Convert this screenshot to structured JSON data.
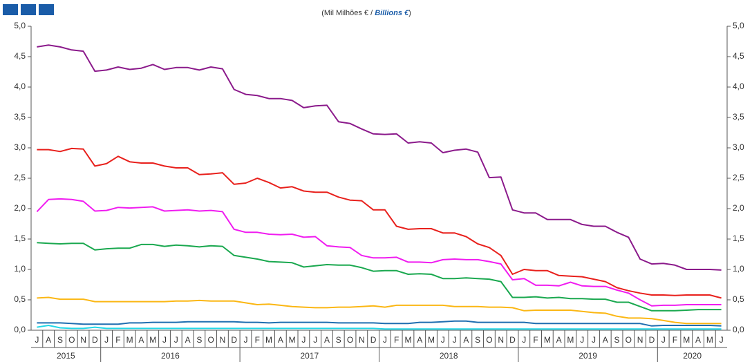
{
  "chart_data": {
    "type": "line",
    "subtitle": [
      "(Mil Milhões € / ",
      "Billions  €",
      ")"
    ],
    "categories": [
      "J",
      "A",
      "S",
      "O",
      "N",
      "D",
      "J",
      "F",
      "M",
      "A",
      "M",
      "J",
      "J",
      "A",
      "S",
      "O",
      "N",
      "D",
      "J",
      "F",
      "M",
      "A",
      "M",
      "J",
      "J",
      "A",
      "S",
      "O",
      "N",
      "D",
      "J",
      "F",
      "M",
      "A",
      "M",
      "J",
      "J",
      "A",
      "S",
      "O",
      "N",
      "D",
      "J",
      "F",
      "M",
      "A",
      "M",
      "J",
      "J",
      "A",
      "S",
      "O",
      "N",
      "D",
      "J",
      "F",
      "M",
      "A",
      "M",
      "J"
    ],
    "years": [
      "2015",
      "2016",
      "2017",
      "2018",
      "2019",
      "2020"
    ],
    "ylim": [
      0,
      5
    ],
    "yticks": [
      {
        "value": 0,
        "label": "0,0"
      },
      {
        "value": 0.5,
        "label": "0,5"
      },
      {
        "value": 1,
        "label": "1,0"
      },
      {
        "value": 1.5,
        "label": "1,5"
      },
      {
        "value": 2,
        "label": "2,0"
      },
      {
        "value": 2.5,
        "label": "2,5"
      },
      {
        "value": 3,
        "label": "3,0"
      },
      {
        "value": 3.5,
        "label": "3,5"
      },
      {
        "value": 4,
        "label": "4,0"
      },
      {
        "value": 4.5,
        "label": "4,5"
      },
      {
        "value": 5,
        "label": "5,0"
      }
    ],
    "series": [
      {
        "color": "#8b1a8b",
        "values": [
          4.66,
          4.69,
          4.66,
          4.61,
          4.59,
          4.26,
          4.28,
          4.33,
          4.29,
          4.31,
          4.37,
          4.29,
          4.32,
          4.32,
          4.28,
          4.33,
          4.3,
          3.96,
          3.88,
          3.86,
          3.81,
          3.81,
          3.78,
          3.66,
          3.69,
          3.7,
          3.43,
          3.4,
          3.31,
          3.23,
          3.22,
          3.23,
          3.08,
          3.1,
          3.08,
          2.92,
          2.96,
          2.98,
          2.93,
          2.51,
          2.52,
          1.98,
          1.93,
          1.93,
          1.82,
          1.82,
          1.82,
          1.74,
          1.71,
          1.71,
          1.61,
          1.53,
          1.17,
          1.09,
          1.1,
          1.07,
          1.0,
          1.0,
          1.0,
          0.99
        ]
      },
      {
        "color": "#e8201c",
        "values": [
          2.97,
          2.97,
          2.94,
          2.99,
          2.98,
          2.7,
          2.74,
          2.86,
          2.77,
          2.75,
          2.75,
          2.7,
          2.67,
          2.67,
          2.56,
          2.57,
          2.59,
          2.4,
          2.42,
          2.5,
          2.43,
          2.34,
          2.36,
          2.29,
          2.27,
          2.27,
          2.19,
          2.14,
          2.13,
          1.98,
          1.98,
          1.71,
          1.66,
          1.67,
          1.67,
          1.6,
          1.6,
          1.54,
          1.42,
          1.36,
          1.23,
          0.92,
          1.0,
          0.98,
          0.98,
          0.9,
          0.89,
          0.88,
          0.84,
          0.8,
          0.7,
          0.65,
          0.61,
          0.58,
          0.58,
          0.57,
          0.58,
          0.58,
          0.58,
          0.53
        ]
      },
      {
        "color": "#f01cf0",
        "values": [
          1.95,
          2.15,
          2.16,
          2.15,
          2.12,
          1.96,
          1.97,
          2.02,
          2.01,
          2.02,
          2.03,
          1.96,
          1.97,
          1.98,
          1.96,
          1.97,
          1.95,
          1.66,
          1.61,
          1.61,
          1.58,
          1.57,
          1.58,
          1.53,
          1.54,
          1.39,
          1.37,
          1.36,
          1.23,
          1.19,
          1.19,
          1.2,
          1.12,
          1.12,
          1.11,
          1.16,
          1.17,
          1.16,
          1.16,
          1.13,
          1.09,
          0.83,
          0.85,
          0.74,
          0.74,
          0.73,
          0.79,
          0.73,
          0.72,
          0.72,
          0.66,
          0.61,
          0.5,
          0.4,
          0.41,
          0.41,
          0.42,
          0.42,
          0.42,
          0.42
        ]
      },
      {
        "color": "#1aa84f",
        "values": [
          1.44,
          1.43,
          1.42,
          1.43,
          1.43,
          1.32,
          1.34,
          1.35,
          1.35,
          1.41,
          1.41,
          1.38,
          1.4,
          1.39,
          1.37,
          1.39,
          1.38,
          1.23,
          1.2,
          1.17,
          1.13,
          1.12,
          1.11,
          1.04,
          1.06,
          1.08,
          1.07,
          1.07,
          1.03,
          0.97,
          0.98,
          0.98,
          0.92,
          0.93,
          0.92,
          0.85,
          0.85,
          0.86,
          0.85,
          0.84,
          0.8,
          0.54,
          0.54,
          0.55,
          0.53,
          0.54,
          0.52,
          0.52,
          0.51,
          0.51,
          0.46,
          0.46,
          0.39,
          0.32,
          0.32,
          0.32,
          0.33,
          0.34,
          0.34,
          0.34
        ]
      },
      {
        "color": "#fbb714",
        "values": [
          0.53,
          0.54,
          0.51,
          0.51,
          0.51,
          0.47,
          0.47,
          0.47,
          0.47,
          0.47,
          0.47,
          0.47,
          0.48,
          0.48,
          0.49,
          0.48,
          0.48,
          0.48,
          0.45,
          0.42,
          0.43,
          0.41,
          0.39,
          0.38,
          0.37,
          0.37,
          0.38,
          0.38,
          0.39,
          0.4,
          0.38,
          0.41,
          0.41,
          0.41,
          0.41,
          0.41,
          0.39,
          0.39,
          0.39,
          0.38,
          0.38,
          0.37,
          0.32,
          0.33,
          0.33,
          0.33,
          0.33,
          0.31,
          0.29,
          0.28,
          0.23,
          0.2,
          0.2,
          0.19,
          0.16,
          0.13,
          0.11,
          0.11,
          0.11,
          0.11
        ]
      },
      {
        "color": "#1f6eb0",
        "values": [
          0.12,
          0.12,
          0.12,
          0.11,
          0.1,
          0.1,
          0.1,
          0.1,
          0.12,
          0.12,
          0.13,
          0.13,
          0.13,
          0.14,
          0.14,
          0.14,
          0.14,
          0.14,
          0.13,
          0.13,
          0.12,
          0.13,
          0.13,
          0.13,
          0.13,
          0.13,
          0.12,
          0.12,
          0.12,
          0.12,
          0.11,
          0.11,
          0.11,
          0.13,
          0.13,
          0.14,
          0.15,
          0.15,
          0.13,
          0.13,
          0.13,
          0.13,
          0.13,
          0.11,
          0.11,
          0.11,
          0.11,
          0.11,
          0.11,
          0.11,
          0.11,
          0.11,
          0.11,
          0.07,
          0.08,
          0.08,
          0.08,
          0.08,
          0.08,
          0.07
        ]
      },
      {
        "color": "#22d8e8",
        "values": [
          0.05,
          0.08,
          0.04,
          0.03,
          0.03,
          0.05,
          0.03,
          0.03,
          0.03,
          0.03,
          0.03,
          0.03,
          0.03,
          0.03,
          0.03,
          0.03,
          0.03,
          0.03,
          0.03,
          0.03,
          0.03,
          0.03,
          0.03,
          0.03,
          0.03,
          0.03,
          0.03,
          0.03,
          0.03,
          0.03,
          0.02,
          0.02,
          0.02,
          0.02,
          0.02,
          0.02,
          0.02,
          0.02,
          0.02,
          0.02,
          0.02,
          0.02,
          0.02,
          0.02,
          0.02,
          0.02,
          0.02,
          0.02,
          0.02,
          0.02,
          0.02,
          0.02,
          0.02,
          0.02,
          0.02,
          0.02,
          0.02,
          0.02,
          0.02,
          0.02
        ]
      }
    ]
  }
}
